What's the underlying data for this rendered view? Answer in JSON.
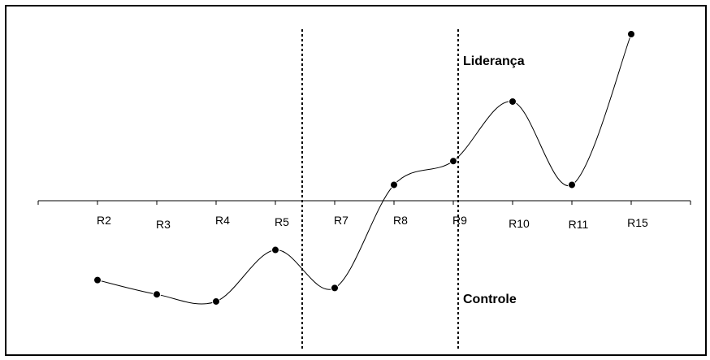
{
  "chart_data": {
    "type": "line",
    "title": "",
    "xlabel": "",
    "ylabel": "",
    "categories": [
      "R2",
      "R3",
      "R4",
      "R5",
      "R7",
      "R8",
      "R9",
      "R10",
      "R11",
      "R15"
    ],
    "series": [
      {
        "values": [
          -1.0,
          -1.18,
          -1.27,
          -0.62,
          -1.1,
          0.2,
          0.5,
          1.25,
          0.2,
          2.1
        ]
      }
    ],
    "ylim": [
      -1.9,
      2.25
    ],
    "curve": "smooth",
    "marker": "circle",
    "grid": false,
    "legend": "none",
    "dividers_after_categories": [
      "R5",
      "R9"
    ],
    "annotations": [
      {
        "text": "Liderança",
        "region": "upper"
      },
      {
        "text": "Controle",
        "region": "lower"
      }
    ],
    "colors": {
      "line": "#000000",
      "marker": "#000000",
      "axis": "#000000"
    }
  }
}
